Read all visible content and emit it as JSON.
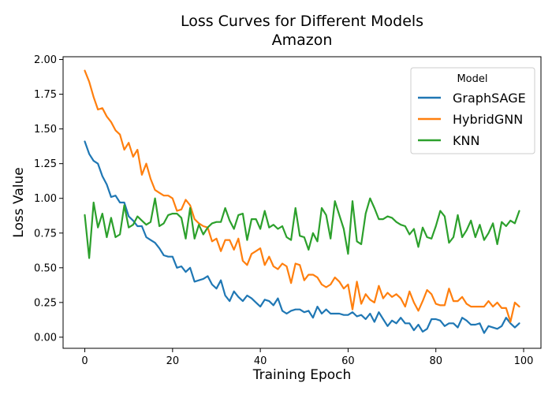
{
  "chart_data": {
    "type": "line",
    "title": "Loss Curves for Different Models",
    "subtitle": "Amazon",
    "xlabel": "Training Epoch",
    "ylabel": "Loss Value",
    "xlim": [
      -4.95,
      103.95
    ],
    "ylim": [
      -0.08,
      2.02
    ],
    "xticks": [
      0,
      20,
      40,
      60,
      80,
      100
    ],
    "yticks": [
      0.0,
      0.25,
      0.5,
      0.75,
      1.0,
      1.25,
      1.5,
      1.75,
      2.0
    ],
    "xtick_labels": [
      "0",
      "20",
      "40",
      "60",
      "80",
      "100"
    ],
    "ytick_labels": [
      "0.00",
      "0.25",
      "0.50",
      "0.75",
      "1.00",
      "1.25",
      "1.50",
      "1.75",
      "2.00"
    ],
    "grid": false,
    "legend": {
      "title": "Model",
      "placement": "top-right"
    },
    "x": [
      0,
      1,
      2,
      3,
      4,
      5,
      6,
      7,
      8,
      9,
      10,
      11,
      12,
      13,
      14,
      15,
      16,
      17,
      18,
      19,
      20,
      21,
      22,
      23,
      24,
      25,
      26,
      27,
      28,
      29,
      30,
      31,
      32,
      33,
      34,
      35,
      36,
      37,
      38,
      39,
      40,
      41,
      42,
      43,
      44,
      45,
      46,
      47,
      48,
      49,
      50,
      51,
      52,
      53,
      54,
      55,
      56,
      57,
      58,
      59,
      60,
      61,
      62,
      63,
      64,
      65,
      66,
      67,
      68,
      69,
      70,
      71,
      72,
      73,
      74,
      75,
      76,
      77,
      78,
      79,
      80,
      81,
      82,
      83,
      84,
      85,
      86,
      87,
      88,
      89,
      90,
      91,
      92,
      93,
      94,
      95,
      96,
      97,
      98,
      99
    ],
    "series": [
      {
        "name": "GraphSAGE",
        "color": "#1f77b4",
        "values": [
          1.41,
          1.32,
          1.27,
          1.25,
          1.16,
          1.1,
          1.01,
          1.02,
          0.97,
          0.97,
          0.87,
          0.84,
          0.8,
          0.8,
          0.72,
          0.7,
          0.68,
          0.64,
          0.59,
          0.58,
          0.58,
          0.5,
          0.51,
          0.47,
          0.5,
          0.4,
          0.41,
          0.42,
          0.44,
          0.38,
          0.35,
          0.41,
          0.3,
          0.26,
          0.33,
          0.29,
          0.26,
          0.3,
          0.28,
          0.25,
          0.22,
          0.27,
          0.26,
          0.23,
          0.28,
          0.19,
          0.17,
          0.19,
          0.2,
          0.2,
          0.18,
          0.19,
          0.14,
          0.22,
          0.17,
          0.2,
          0.17,
          0.17,
          0.17,
          0.16,
          0.16,
          0.18,
          0.15,
          0.16,
          0.13,
          0.17,
          0.11,
          0.18,
          0.13,
          0.08,
          0.12,
          0.1,
          0.14,
          0.1,
          0.1,
          0.05,
          0.09,
          0.04,
          0.06,
          0.13,
          0.13,
          0.12,
          0.08,
          0.1,
          0.1,
          0.07,
          0.14,
          0.12,
          0.09,
          0.09,
          0.1,
          0.03,
          0.08,
          0.07,
          0.06,
          0.08,
          0.14,
          0.1,
          0.07,
          0.1
        ]
      },
      {
        "name": "HybridGNN",
        "color": "#ff7f0e",
        "values": [
          1.92,
          1.84,
          1.73,
          1.64,
          1.65,
          1.59,
          1.55,
          1.49,
          1.46,
          1.35,
          1.4,
          1.3,
          1.35,
          1.17,
          1.25,
          1.14,
          1.06,
          1.04,
          1.02,
          1.02,
          1.0,
          0.91,
          0.92,
          0.99,
          0.95,
          0.85,
          0.82,
          0.8,
          0.79,
          0.69,
          0.71,
          0.62,
          0.7,
          0.7,
          0.63,
          0.71,
          0.55,
          0.52,
          0.6,
          0.62,
          0.64,
          0.52,
          0.58,
          0.51,
          0.49,
          0.53,
          0.51,
          0.39,
          0.53,
          0.52,
          0.41,
          0.45,
          0.45,
          0.43,
          0.38,
          0.36,
          0.38,
          0.43,
          0.4,
          0.35,
          0.38,
          0.2,
          0.4,
          0.24,
          0.31,
          0.27,
          0.25,
          0.37,
          0.28,
          0.32,
          0.29,
          0.31,
          0.28,
          0.22,
          0.33,
          0.25,
          0.19,
          0.26,
          0.34,
          0.31,
          0.24,
          0.23,
          0.23,
          0.35,
          0.26,
          0.26,
          0.29,
          0.24,
          0.22,
          0.22,
          0.22,
          0.22,
          0.26,
          0.22,
          0.25,
          0.21,
          0.21,
          0.11,
          0.25,
          0.22
        ]
      },
      {
        "name": "KNN",
        "color": "#2ca02c",
        "values": [
          0.88,
          0.57,
          0.97,
          0.79,
          0.89,
          0.72,
          0.86,
          0.72,
          0.74,
          0.95,
          0.79,
          0.81,
          0.87,
          0.84,
          0.81,
          0.83,
          1.0,
          0.8,
          0.82,
          0.88,
          0.89,
          0.89,
          0.86,
          0.71,
          0.93,
          0.71,
          0.81,
          0.74,
          0.79,
          0.82,
          0.83,
          0.83,
          0.93,
          0.84,
          0.78,
          0.88,
          0.89,
          0.7,
          0.85,
          0.85,
          0.78,
          0.91,
          0.79,
          0.81,
          0.78,
          0.8,
          0.72,
          0.7,
          0.93,
          0.73,
          0.72,
          0.63,
          0.75,
          0.69,
          0.93,
          0.88,
          0.71,
          0.98,
          0.88,
          0.78,
          0.6,
          0.98,
          0.69,
          0.67,
          0.89,
          1.0,
          0.93,
          0.85,
          0.85,
          0.87,
          0.86,
          0.83,
          0.81,
          0.8,
          0.74,
          0.78,
          0.65,
          0.79,
          0.72,
          0.71,
          0.8,
          0.91,
          0.87,
          0.68,
          0.72,
          0.88,
          0.72,
          0.77,
          0.84,
          0.72,
          0.81,
          0.7,
          0.75,
          0.82,
          0.67,
          0.83,
          0.8,
          0.84,
          0.82,
          0.91
        ]
      }
    ]
  }
}
